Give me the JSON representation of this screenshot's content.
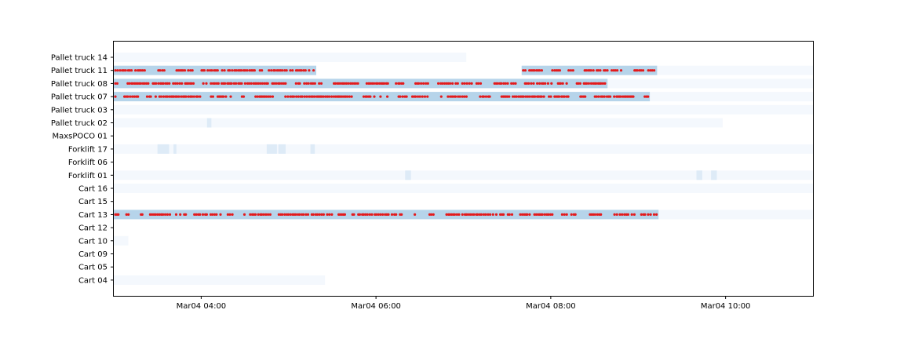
{
  "chart_data": {
    "type": "heatmap",
    "title": "",
    "xlabel": "",
    "ylabel": "",
    "x_axis": {
      "start": "Mar04 03:00",
      "end": "Mar04 11:00",
      "ticks": [
        "Mar04 04:00",
        "Mar04 06:00",
        "Mar04 08:00",
        "Mar04 10:00"
      ]
    },
    "grid": false,
    "rows": [
      "Pallet truck 14",
      "Pallet truck 11",
      "Pallet truck 08",
      "Pallet truck 07",
      "Pallet truck 03",
      "Pallet truck 02",
      "MaxsPOCO 01",
      "Forklift 17",
      "Forklift 06",
      "Forklift 01",
      "Cart 16",
      "Cart 15",
      "Cart 13",
      "Cart 12",
      "Cart 10",
      "Cart 09",
      "Cart 05",
      "Cart 04"
    ],
    "colors": {
      "faint": "#f4f8fd",
      "light": "#deebf7",
      "medium": "#b6d4ea",
      "marker": "#e31a1c"
    },
    "cells": [
      {
        "row": "Pallet truck 14",
        "start": "03:00",
        "end": "07:02",
        "level": "faint"
      },
      {
        "row": "Pallet truck 11",
        "start": "03:00",
        "end": "05:19",
        "level": "medium",
        "markers": true
      },
      {
        "row": "Pallet truck 11",
        "start": "07:40",
        "end": "09:13",
        "level": "medium",
        "markers": true
      },
      {
        "row": "Pallet truck 11",
        "start": "09:13",
        "end": "11:00",
        "level": "faint"
      },
      {
        "row": "Pallet truck 08",
        "start": "03:00",
        "end": "08:39",
        "level": "medium",
        "markers": true
      },
      {
        "row": "Pallet truck 08",
        "start": "08:39",
        "end": "11:00",
        "level": "faint"
      },
      {
        "row": "Pallet truck 07",
        "start": "03:00",
        "end": "09:08",
        "level": "medium",
        "markers": true
      },
      {
        "row": "Pallet truck 07",
        "start": "09:08",
        "end": "11:00",
        "level": "faint"
      },
      {
        "row": "Pallet truck 03",
        "start": "03:00",
        "end": "11:00",
        "level": "faint"
      },
      {
        "row": "Pallet truck 02",
        "start": "03:00",
        "end": "09:58",
        "level": "faint"
      },
      {
        "row": "Pallet truck 02",
        "start": "04:04",
        "end": "04:07",
        "level": "light"
      },
      {
        "row": "Forklift 17",
        "start": "03:00",
        "end": "11:00",
        "level": "faint"
      },
      {
        "row": "Forklift 17",
        "start": "03:30",
        "end": "03:38",
        "level": "light"
      },
      {
        "row": "Forklift 17",
        "start": "03:41",
        "end": "03:43",
        "level": "light"
      },
      {
        "row": "Forklift 17",
        "start": "04:45",
        "end": "04:52",
        "level": "light"
      },
      {
        "row": "Forklift 17",
        "start": "04:53",
        "end": "04:58",
        "level": "light"
      },
      {
        "row": "Forklift 17",
        "start": "05:15",
        "end": "05:18",
        "level": "light"
      },
      {
        "row": "Forklift 01",
        "start": "03:00",
        "end": "11:00",
        "level": "faint"
      },
      {
        "row": "Forklift 01",
        "start": "06:20",
        "end": "06:24",
        "level": "light"
      },
      {
        "row": "Forklift 01",
        "start": "09:40",
        "end": "09:44",
        "level": "light"
      },
      {
        "row": "Forklift 01",
        "start": "09:50",
        "end": "09:54",
        "level": "light"
      },
      {
        "row": "Cart 16",
        "start": "03:00",
        "end": "11:00",
        "level": "faint"
      },
      {
        "row": "Cart 13",
        "start": "03:00",
        "end": "09:14",
        "level": "medium",
        "markers": true
      },
      {
        "row": "Cart 13",
        "start": "09:14",
        "end": "11:00",
        "level": "faint"
      },
      {
        "row": "Cart 10",
        "start": "03:00",
        "end": "03:10",
        "level": "faint"
      },
      {
        "row": "Cart 04",
        "start": "03:00",
        "end": "05:25",
        "level": "faint"
      }
    ]
  }
}
